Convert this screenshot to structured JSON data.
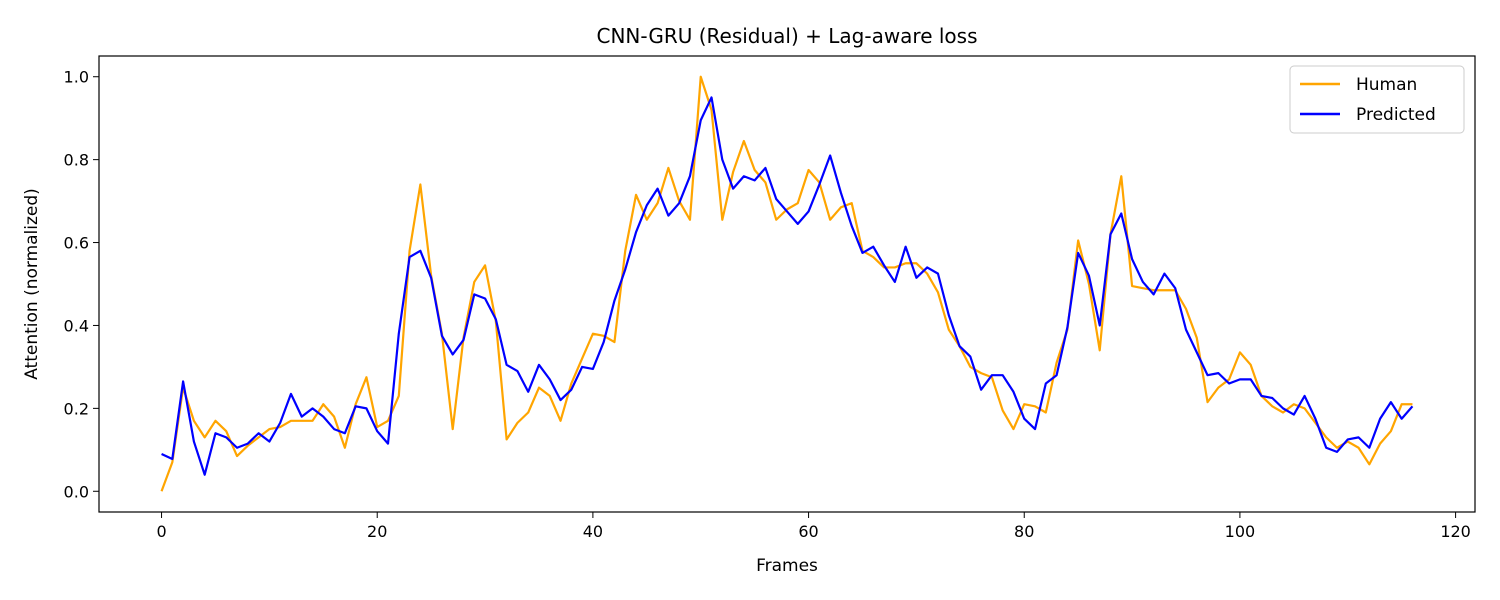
{
  "chart_data": {
    "type": "line",
    "title": "CNN-GRU (Residual) + Lag-aware loss",
    "xlabel": "Frames",
    "ylabel": "Attention (normalized)",
    "xlim": [
      -5.8,
      121.8
    ],
    "ylim": [
      -0.05,
      1.05
    ],
    "xticks": [
      0,
      20,
      40,
      60,
      80,
      100,
      120
    ],
    "yticks": [
      0.0,
      0.2,
      0.4,
      0.6,
      0.8,
      1.0
    ],
    "xtick_labels": [
      "0",
      "20",
      "40",
      "60",
      "80",
      "100",
      "120"
    ],
    "ytick_labels": [
      "0.0",
      "0.2",
      "0.4",
      "0.6",
      "0.8",
      "1.0"
    ],
    "grid": false,
    "legend": "top-right",
    "colors": {
      "human": "#FFA500",
      "predicted": "#0000FF"
    },
    "series": [
      {
        "name": "Human",
        "values": [
          0.0,
          0.07,
          0.25,
          0.17,
          0.13,
          0.17,
          0.145,
          0.085,
          0.11,
          0.13,
          0.15,
          0.155,
          0.17,
          0.17,
          0.17,
          0.21,
          0.18,
          0.105,
          0.21,
          0.275,
          0.155,
          0.17,
          0.23,
          0.58,
          0.74,
          0.52,
          0.38,
          0.15,
          0.37,
          0.505,
          0.545,
          0.41,
          0.125,
          0.165,
          0.19,
          0.25,
          0.23,
          0.17,
          0.26,
          0.32,
          0.38,
          0.375,
          0.36,
          0.58,
          0.715,
          0.655,
          0.695,
          0.78,
          0.7,
          0.655,
          1.0,
          0.92,
          0.655,
          0.77,
          0.845,
          0.775,
          0.745,
          0.655,
          0.68,
          0.695,
          0.775,
          0.745,
          0.655,
          0.685,
          0.695,
          0.58,
          0.565,
          0.54,
          0.54,
          0.55,
          0.55,
          0.525,
          0.48,
          0.39,
          0.35,
          0.3,
          0.285,
          0.275,
          0.195,
          0.15,
          0.21,
          0.205,
          0.19,
          0.31,
          0.39,
          0.605,
          0.5,
          0.34,
          0.62,
          0.76,
          0.495,
          0.49,
          0.485,
          0.485,
          0.485,
          0.44,
          0.37,
          0.215,
          0.25,
          0.27,
          0.335,
          0.305,
          0.23,
          0.205,
          0.19,
          0.21,
          0.2,
          0.165,
          0.13,
          0.105,
          0.12,
          0.105,
          0.065,
          0.115,
          0.145,
          0.21,
          0.21
        ]
      },
      {
        "name": "Predicted",
        "values": [
          0.09,
          0.078,
          0.265,
          0.12,
          0.04,
          0.14,
          0.13,
          0.105,
          0.115,
          0.14,
          0.12,
          0.165,
          0.235,
          0.18,
          0.2,
          0.18,
          0.15,
          0.14,
          0.205,
          0.2,
          0.145,
          0.115,
          0.38,
          0.565,
          0.58,
          0.515,
          0.375,
          0.33,
          0.365,
          0.475,
          0.465,
          0.415,
          0.305,
          0.29,
          0.24,
          0.305,
          0.27,
          0.22,
          0.245,
          0.3,
          0.295,
          0.36,
          0.46,
          0.535,
          0.625,
          0.69,
          0.73,
          0.665,
          0.695,
          0.76,
          0.895,
          0.95,
          0.8,
          0.73,
          0.76,
          0.75,
          0.78,
          0.705,
          0.675,
          0.645,
          0.675,
          0.74,
          0.81,
          0.72,
          0.64,
          0.575,
          0.59,
          0.545,
          0.505,
          0.59,
          0.515,
          0.54,
          0.525,
          0.425,
          0.35,
          0.325,
          0.245,
          0.28,
          0.28,
          0.24,
          0.175,
          0.15,
          0.26,
          0.28,
          0.395,
          0.575,
          0.52,
          0.4,
          0.62,
          0.67,
          0.56,
          0.505,
          0.475,
          0.525,
          0.49,
          0.39,
          0.335,
          0.28,
          0.285,
          0.26,
          0.27,
          0.27,
          0.23,
          0.225,
          0.2,
          0.185,
          0.23,
          0.175,
          0.105,
          0.095,
          0.125,
          0.13,
          0.105,
          0.175,
          0.215,
          0.175,
          0.205
        ]
      }
    ]
  }
}
